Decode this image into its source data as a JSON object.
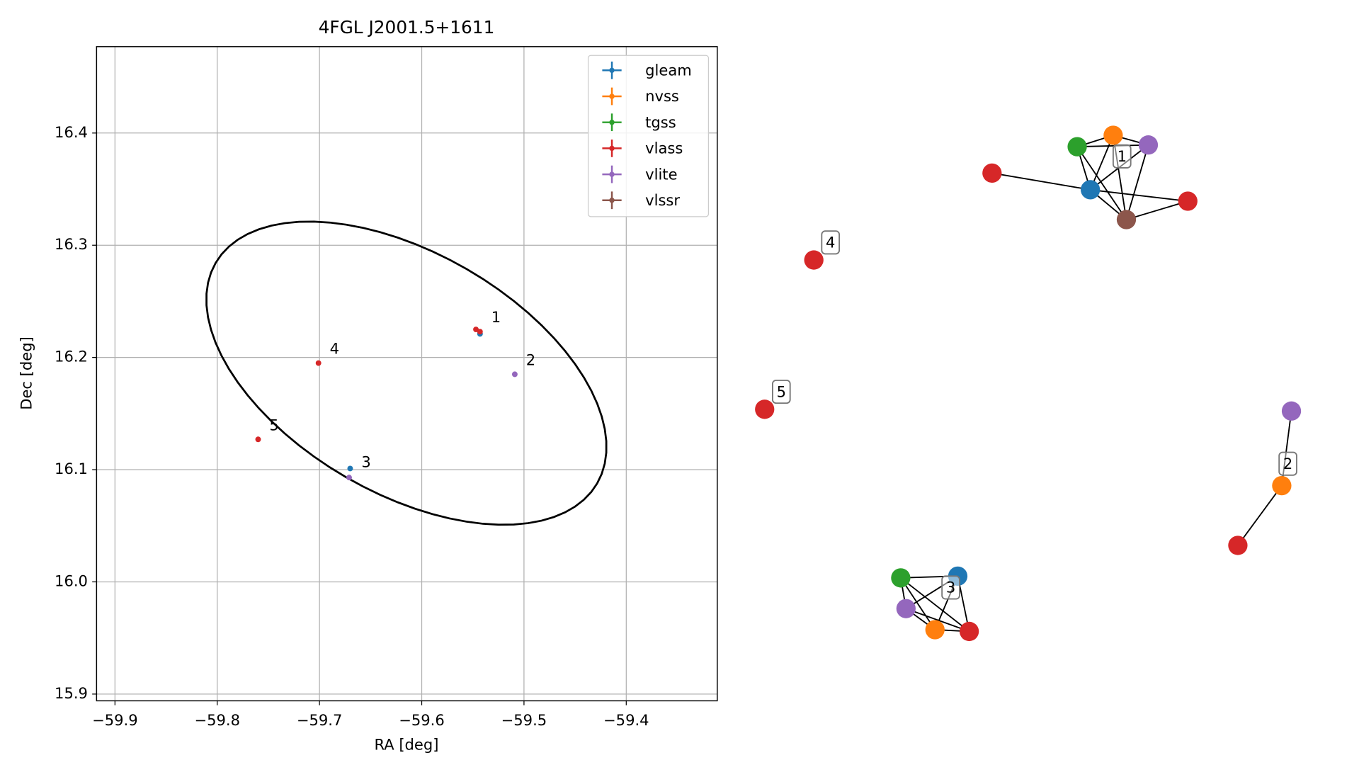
{
  "chart_data": {
    "type": "scatter",
    "title": "4FGL J2001.5+1611",
    "x_label": "RA [deg]",
    "y_label": "Dec [deg]",
    "xlim": [
      -59.918,
      -59.311
    ],
    "ylim": [
      15.894,
      16.477
    ],
    "xticks": [
      {
        "value": -59.9,
        "label": "−59.9"
      },
      {
        "value": -59.8,
        "label": "−59.8"
      },
      {
        "value": -59.7,
        "label": "−59.7"
      },
      {
        "value": -59.6,
        "label": "−59.6"
      },
      {
        "value": -59.5,
        "label": "−59.5"
      },
      {
        "value": -59.4,
        "label": "−59.4"
      }
    ],
    "yticks": [
      15.9,
      {
        "value": 16.0,
        "label": "16.0"
      },
      16.1,
      16.2,
      16.3,
      16.4
    ],
    "grid": true,
    "legend": "upper right",
    "series": [
      {
        "name": "gleam",
        "color": "#1f77b4",
        "x": [
          -59.543,
          -59.67
        ],
        "y": [
          16.221,
          16.101
        ]
      },
      {
        "name": "nvss",
        "color": "#ff7f0e",
        "x": [],
        "y": []
      },
      {
        "name": "tgss",
        "color": "#2ca02c",
        "x": [],
        "y": []
      },
      {
        "name": "vlass",
        "color": "#d62728",
        "x": [
          -59.547,
          -59.543,
          -59.701,
          -59.76
        ],
        "y": [
          16.225,
          16.223,
          16.195,
          16.127
        ]
      },
      {
        "name": "vlite",
        "color": "#9467bd",
        "x": [
          -59.509,
          -59.671
        ],
        "y": [
          16.185,
          16.093
        ]
      },
      {
        "name": "vlssr",
        "color": "#8c564b",
        "x": [],
        "y": []
      }
    ],
    "annotations": [
      {
        "text": "1",
        "x": -59.532,
        "y": 16.235
      },
      {
        "text": "2",
        "x": -59.498,
        "y": 16.197
      },
      {
        "text": "3",
        "x": -59.659,
        "y": 16.106
      },
      {
        "text": "4",
        "x": -59.69,
        "y": 16.207
      },
      {
        "text": "5",
        "x": -59.749,
        "y": 16.139
      }
    ],
    "ellipse": {
      "center": [
        -59.615,
        16.186
      ],
      "axis1": [
        0.1866,
        -0.0982
      ],
      "axis2": [
        0.0589,
        0.0928
      ]
    },
    "graph": {
      "nodes": [
        "tgss",
        "nvss",
        "vlite",
        "vlass",
        "gleam",
        "vlass",
        "vlssr",
        "vlass",
        "vlass",
        "vlite",
        "nvss",
        "vlass",
        "tgss",
        "gleam",
        "vlite",
        "nvss",
        "vlass"
      ],
      "edges": [
        [
          0,
          1
        ],
        [
          0,
          2
        ],
        [
          1,
          2
        ],
        [
          0,
          4
        ],
        [
          0,
          6
        ],
        [
          1,
          4
        ],
        [
          1,
          6
        ],
        [
          2,
          4
        ],
        [
          2,
          6
        ],
        [
          4,
          6
        ],
        [
          3,
          4
        ],
        [
          4,
          5
        ],
        [
          6,
          5
        ],
        [
          9,
          10
        ],
        [
          10,
          11
        ],
        [
          12,
          13
        ],
        [
          12,
          14
        ],
        [
          12,
          15
        ],
        [
          12,
          16
        ],
        [
          13,
          14
        ],
        [
          13,
          15
        ],
        [
          14,
          15
        ],
        [
          14,
          16
        ],
        [
          15,
          16
        ],
        [
          13,
          16
        ]
      ],
      "labels": [
        "1",
        "4",
        "5",
        "2",
        "3"
      ]
    }
  }
}
